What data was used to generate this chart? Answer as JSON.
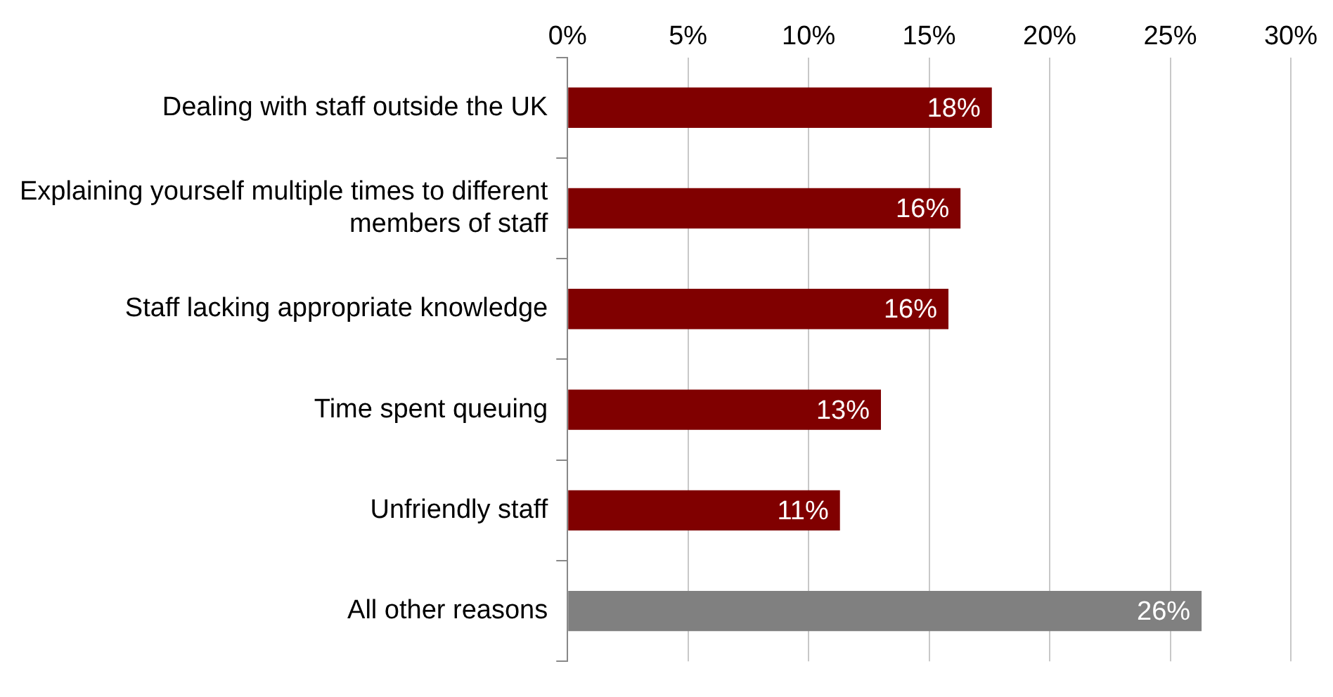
{
  "chart_data": {
    "type": "bar",
    "orientation": "horizontal",
    "categories": [
      "Dealing with staff outside the UK",
      "Explaining yourself multiple times to different members of staff",
      "Staff lacking appropriate knowledge",
      "Time spent queuing",
      "Unfriendly staff",
      "All other reasons"
    ],
    "values": [
      17.6,
      16.3,
      15.8,
      13.0,
      11.3,
      26.3
    ],
    "colors": [
      "#800000",
      "#800000",
      "#800000",
      "#800000",
      "#800000",
      "#808080"
    ],
    "value_labels": [
      "18%",
      "16%",
      "16%",
      "13%",
      "11%",
      "26%"
    ],
    "xlim": [
      0,
      30
    ],
    "xticks": [
      {
        "value": 0,
        "label": "0%"
      },
      {
        "value": 5,
        "label": "5%"
      },
      {
        "value": 10,
        "label": "10%"
      },
      {
        "value": 15,
        "label": "15%"
      },
      {
        "value": 20,
        "label": "20%"
      },
      {
        "value": 25,
        "label": "25%"
      },
      {
        "value": 30,
        "label": "30%"
      }
    ],
    "grid": "x",
    "legend": false
  }
}
